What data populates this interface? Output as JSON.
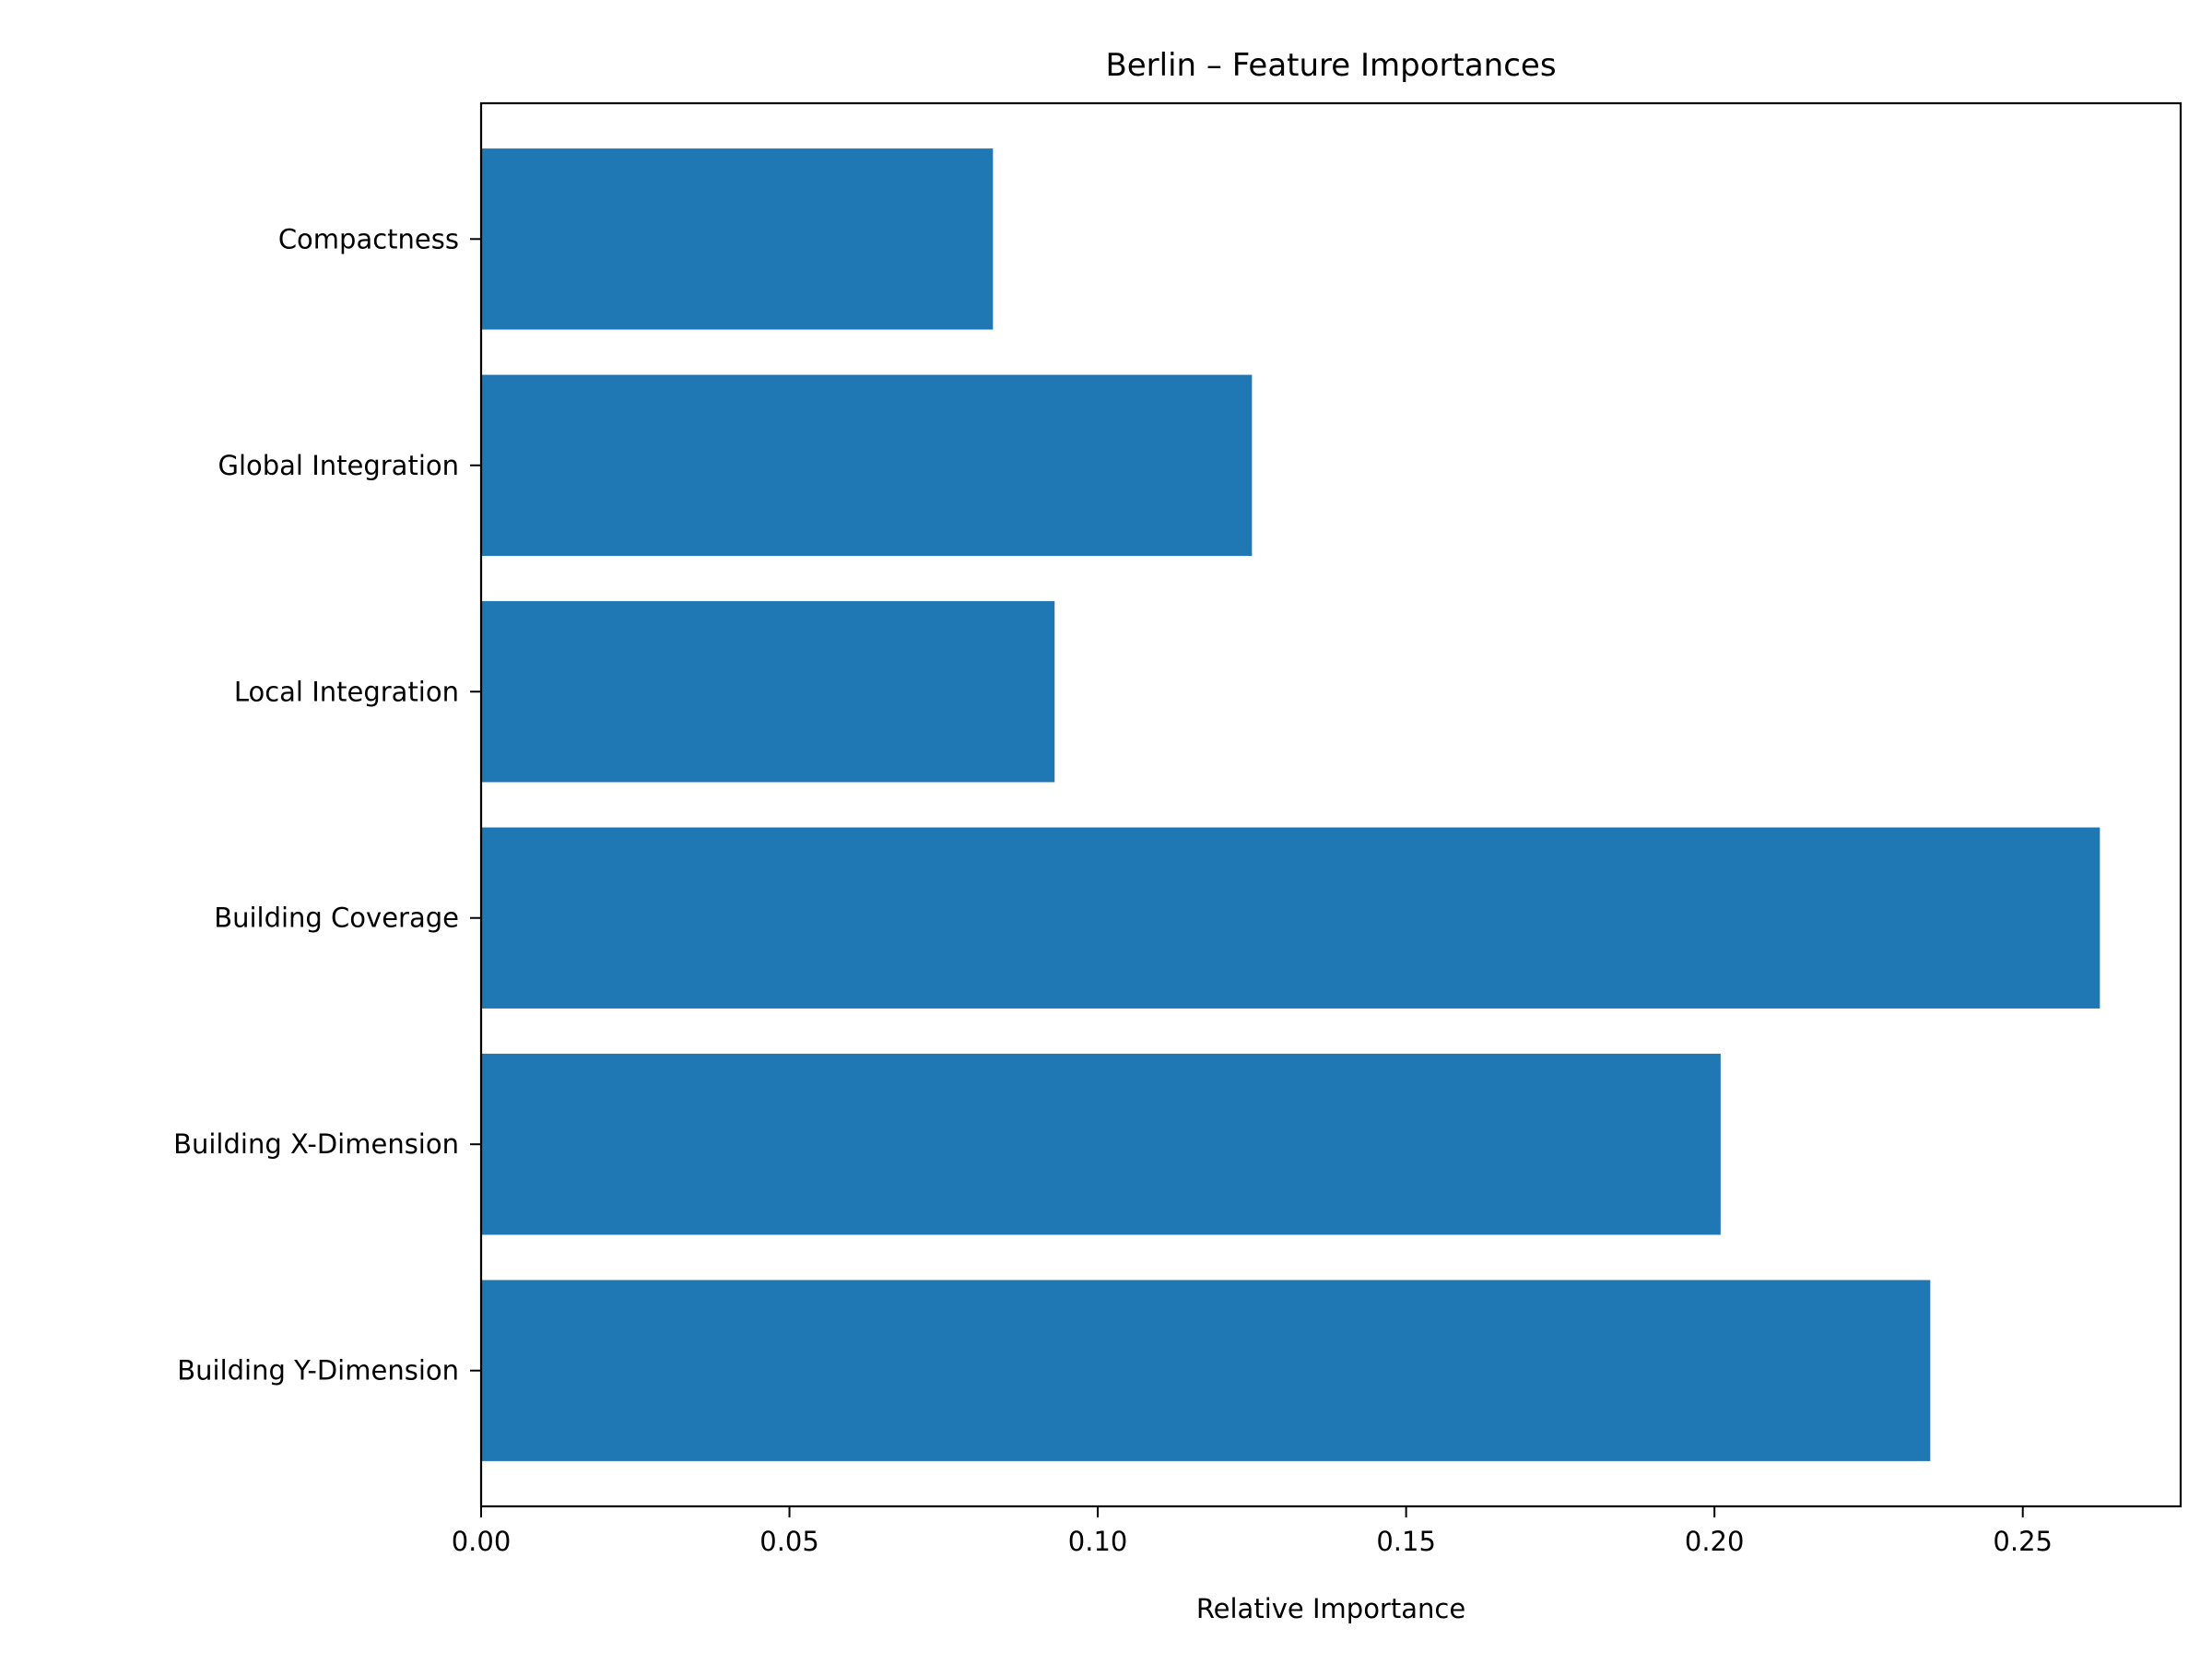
{
  "chart_data": {
    "type": "bar",
    "orientation": "horizontal",
    "title": "Berlin – Feature Importances",
    "xlabel": "Relative Importance",
    "ylabel": "",
    "categories": [
      "Building Y-Dimension",
      "Building X-Dimension",
      "Building Coverage",
      "Local Integration",
      "Global Integration",
      "Compactness"
    ],
    "values": [
      0.235,
      0.201,
      0.2625,
      0.093,
      0.125,
      0.083
    ],
    "xlim": [
      0,
      0.2756
    ],
    "xticks": [
      0.0,
      0.05,
      0.1,
      0.15,
      0.2,
      0.25
    ],
    "xtick_labels": [
      "0.00",
      "0.05",
      "0.10",
      "0.15",
      "0.20",
      "0.25"
    ],
    "bar_color": "#1f77b4",
    "grid": false,
    "legend": "none"
  }
}
